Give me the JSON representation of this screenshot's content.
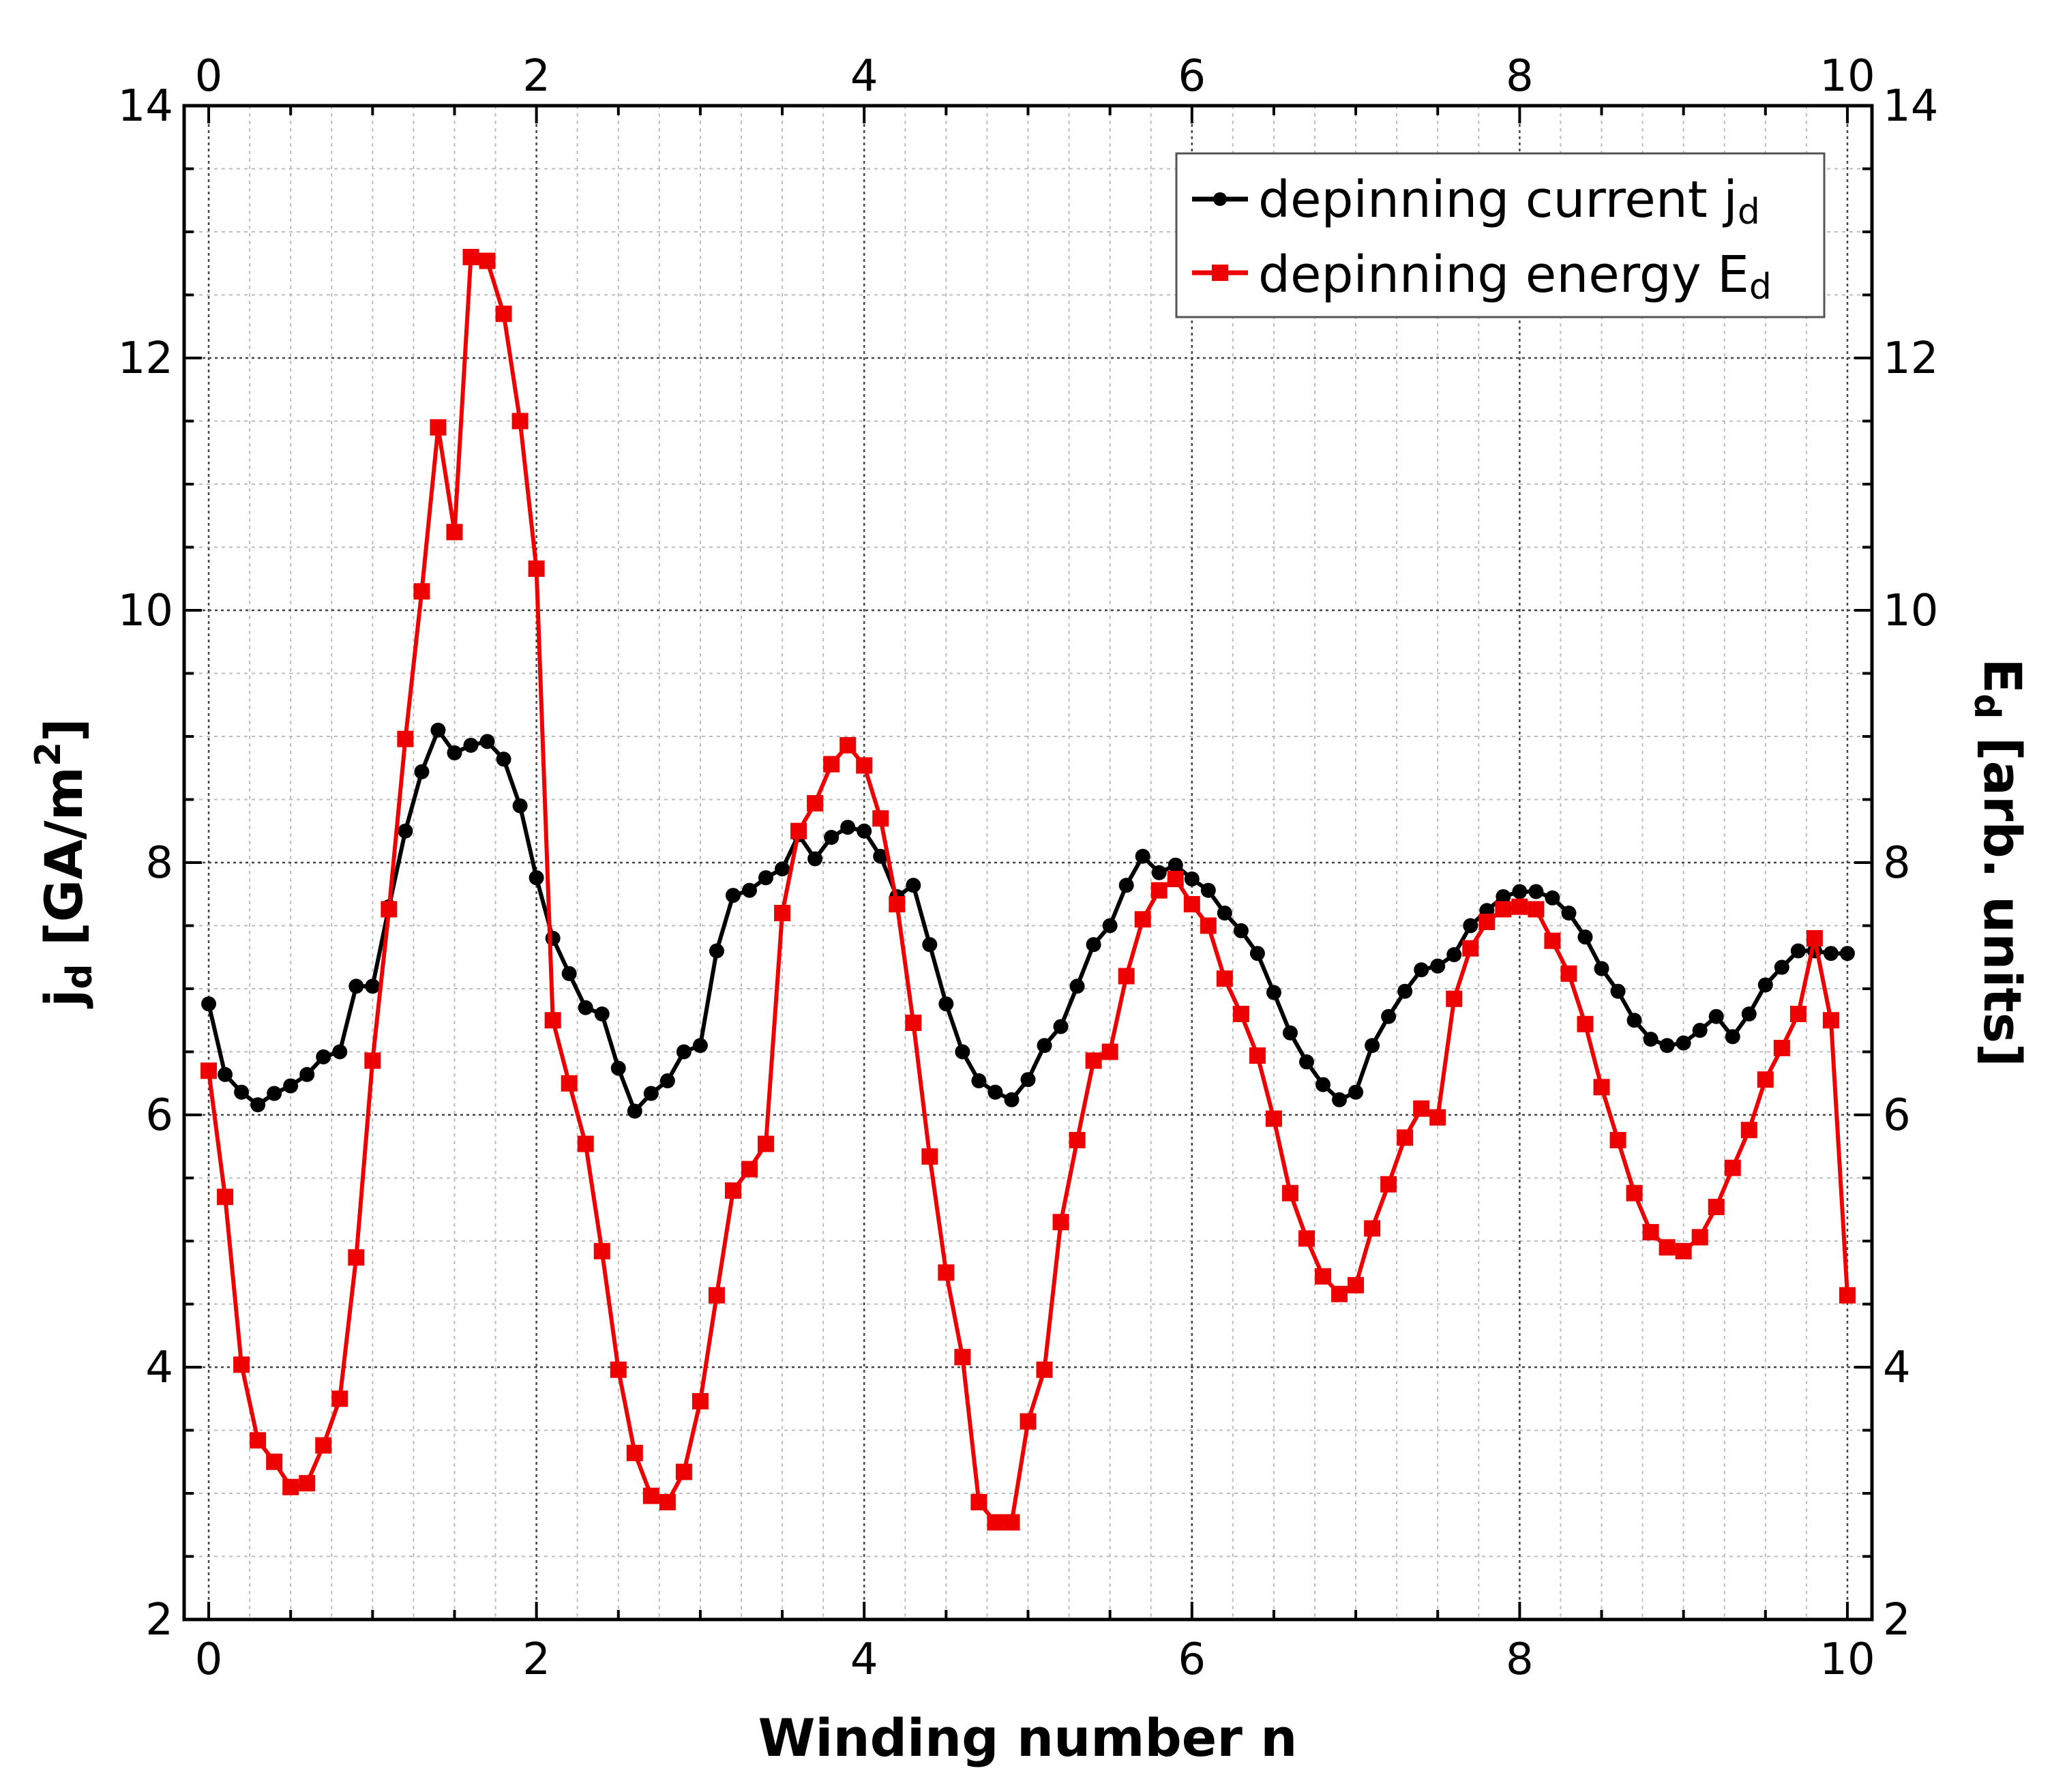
{
  "chart_data": {
    "type": "line",
    "xlabel": "Winding number n",
    "ylabel": {
      "main": "j",
      "sub": "d",
      "rest": " [GA/m",
      "sup": "2",
      "end": "]"
    },
    "y2label": {
      "main": "E",
      "sub": "d",
      "rest": " [arb. units]"
    },
    "xlim": [
      -0.15,
      10.15
    ],
    "ylim": [
      2,
      14
    ],
    "y2lim": [
      2,
      14
    ],
    "x_ticks": [
      0,
      2,
      4,
      6,
      8,
      10
    ],
    "y_ticks": [
      2,
      4,
      6,
      8,
      10,
      12,
      14
    ],
    "grid": true,
    "legend_position": "top-right",
    "x": [
      0.0,
      0.1,
      0.2,
      0.3,
      0.4,
      0.5,
      0.6,
      0.7,
      0.8,
      0.9,
      1.0,
      1.1,
      1.2,
      1.3,
      1.4,
      1.5,
      1.6,
      1.7,
      1.8,
      1.9,
      2.0,
      2.1,
      2.2,
      2.3,
      2.4,
      2.5,
      2.6,
      2.7,
      2.8,
      2.9,
      3.0,
      3.1,
      3.2,
      3.3,
      3.4,
      3.5,
      3.6,
      3.7,
      3.8,
      3.9,
      4.0,
      4.1,
      4.2,
      4.3,
      4.4,
      4.5,
      4.6,
      4.7,
      4.8,
      4.9,
      5.0,
      5.1,
      5.2,
      5.3,
      5.4,
      5.5,
      5.6,
      5.7,
      5.8,
      5.9,
      6.0,
      6.1,
      6.2,
      6.3,
      6.4,
      6.5,
      6.6,
      6.7,
      6.8,
      6.9,
      7.0,
      7.1,
      7.2,
      7.3,
      7.4,
      7.5,
      7.6,
      7.7,
      7.8,
      7.9,
      8.0,
      8.1,
      8.2,
      8.3,
      8.4,
      8.5,
      8.6,
      8.7,
      8.8,
      8.9,
      9.0,
      9.1,
      9.2,
      9.3,
      9.4,
      9.5,
      9.6,
      9.7,
      9.8,
      9.9,
      10.0
    ],
    "series": [
      {
        "name": "depinning current j",
        "name_sub": "d",
        "color": "#000000",
        "marker": "circle",
        "axis": "left",
        "values": [
          6.88,
          6.32,
          6.18,
          6.08,
          6.17,
          6.23,
          6.32,
          6.46,
          6.5,
          7.02,
          7.02,
          7.65,
          8.25,
          8.72,
          9.05,
          8.87,
          8.93,
          8.96,
          8.82,
          8.45,
          7.88,
          7.4,
          7.12,
          6.85,
          6.8,
          6.37,
          6.03,
          6.17,
          6.27,
          6.5,
          6.55,
          7.3,
          7.74,
          7.78,
          7.88,
          7.95,
          8.22,
          8.03,
          8.2,
          8.28,
          8.25,
          8.05,
          7.73,
          7.82,
          7.35,
          6.88,
          6.5,
          6.27,
          6.18,
          6.12,
          6.28,
          6.55,
          6.7,
          7.02,
          7.35,
          7.5,
          7.82,
          8.05,
          7.92,
          7.98,
          7.87,
          7.78,
          7.6,
          7.46,
          7.28,
          6.97,
          6.65,
          6.42,
          6.24,
          6.12,
          6.18,
          6.55,
          6.78,
          6.98,
          7.15,
          7.18,
          7.27,
          7.5,
          7.62,
          7.73,
          7.77,
          7.77,
          7.72,
          7.6,
          7.41,
          7.16,
          6.98,
          6.75,
          6.6,
          6.55,
          6.57,
          6.67,
          6.78,
          6.62,
          6.8,
          7.03,
          7.17,
          7.3,
          7.3,
          7.28,
          7.28
        ]
      },
      {
        "name": "depinning energy E",
        "name_sub": "d",
        "color": "#ee0000",
        "marker": "square",
        "axis": "right",
        "values": [
          6.35,
          5.35,
          4.02,
          3.42,
          3.25,
          3.05,
          3.08,
          3.38,
          3.75,
          4.87,
          6.43,
          7.63,
          8.98,
          10.15,
          11.45,
          10.62,
          12.8,
          12.77,
          12.35,
          11.5,
          10.33,
          6.75,
          6.25,
          5.77,
          4.92,
          3.98,
          3.32,
          2.98,
          2.93,
          3.17,
          3.73,
          4.57,
          5.4,
          5.57,
          5.77,
          7.6,
          8.25,
          8.47,
          8.78,
          8.93,
          8.77,
          8.35,
          7.67,
          6.73,
          5.67,
          4.75,
          4.08,
          2.93,
          2.77,
          2.77,
          3.57,
          3.98,
          5.15,
          5.8,
          6.43,
          6.5,
          7.1,
          7.55,
          7.78,
          7.87,
          7.67,
          7.5,
          7.08,
          6.8,
          6.47,
          5.97,
          5.38,
          5.02,
          4.72,
          4.58,
          4.65,
          5.1,
          5.45,
          5.82,
          6.05,
          5.98,
          6.92,
          7.32,
          7.53,
          7.63,
          7.65,
          7.63,
          7.38,
          7.12,
          6.72,
          6.22,
          5.8,
          5.38,
          5.07,
          4.95,
          4.92,
          5.03,
          5.27,
          5.58,
          5.88,
          6.28,
          6.53,
          6.8,
          7.4,
          6.75,
          4.57
        ]
      }
    ]
  }
}
